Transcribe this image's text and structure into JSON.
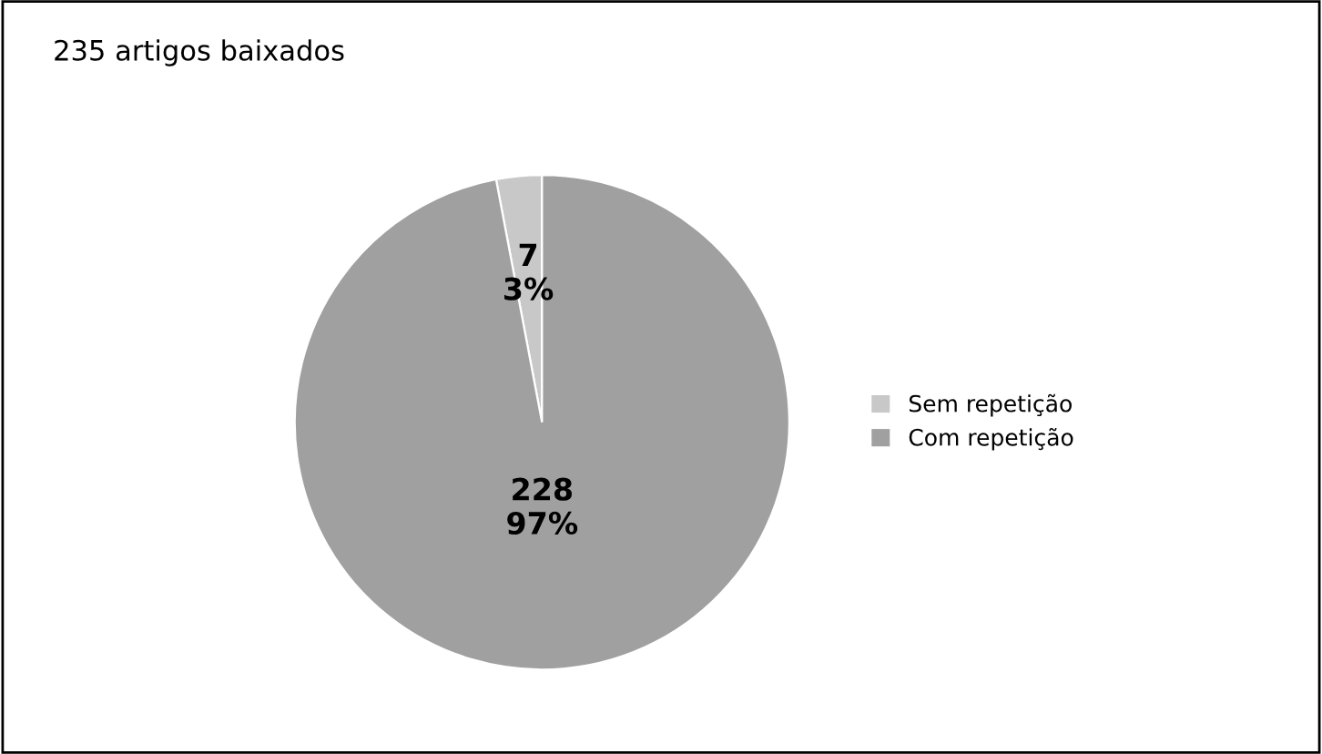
{
  "chart_data": {
    "type": "pie",
    "title": "235 artigos baixados",
    "categories": [
      "Sem repetição",
      "Com repetição"
    ],
    "values": [
      7,
      228
    ],
    "colors": [
      "#c8c8c8",
      "#a0a0a0"
    ],
    "value_labels": [
      "7\n3%",
      "228\n97%"
    ],
    "legend": "right"
  }
}
